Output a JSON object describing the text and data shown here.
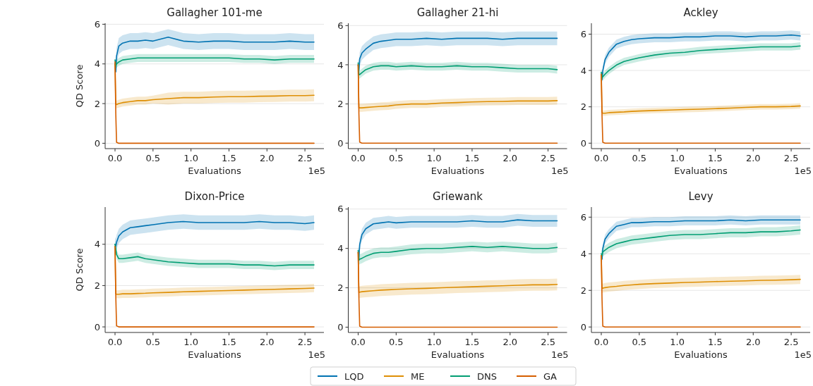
{
  "chart_data": [
    {
      "type": "line",
      "title": "Gallagher 101-me",
      "xlabel": "Evaluations",
      "ylabel": "QD Score",
      "annotations": [
        "1e5"
      ],
      "grid": "y",
      "xlim": [
        -0.13,
        2.75
      ],
      "ylim": [
        -0.27,
        6.05
      ],
      "xticks": [
        {
          "value": 0,
          "label": "0.0"
        },
        0.5,
        {
          "value": 1,
          "label": "1.0"
        },
        1.5,
        {
          "value": 2,
          "label": "2.0"
        },
        2.5
      ],
      "yticks": [
        0,
        2,
        4,
        6
      ],
      "x": [
        0,
        0.01,
        0.02,
        0.05,
        0.1,
        0.2,
        0.3,
        0.4,
        0.5,
        0.7,
        0.9,
        1.1,
        1.3,
        1.5,
        1.7,
        1.9,
        2.1,
        2.3,
        2.5,
        2.62
      ],
      "series": [
        {
          "color": "#0173b2",
          "values": [
            4.0,
            3.6,
            4.4,
            4.9,
            5.05,
            5.15,
            5.15,
            5.2,
            5.15,
            5.35,
            5.15,
            5.1,
            5.15,
            5.15,
            5.1,
            5.1,
            5.1,
            5.15,
            5.1,
            5.1
          ],
          "lower": [
            3.8,
            3.4,
            4.0,
            4.5,
            4.65,
            4.75,
            4.75,
            4.8,
            4.75,
            4.95,
            4.75,
            4.7,
            4.75,
            4.75,
            4.7,
            4.7,
            4.7,
            4.75,
            4.7,
            4.7
          ],
          "upper": [
            4.2,
            3.8,
            4.8,
            5.3,
            5.45,
            5.55,
            5.55,
            5.6,
            5.55,
            5.75,
            5.55,
            5.5,
            5.55,
            5.55,
            5.5,
            5.5,
            5.5,
            5.55,
            5.5,
            5.5
          ]
        },
        {
          "color": "#de8f05",
          "values": [
            4.0,
            2.0,
            1.95,
            2.0,
            2.05,
            2.1,
            2.15,
            2.15,
            2.2,
            2.25,
            2.3,
            2.3,
            2.33,
            2.35,
            2.35,
            2.37,
            2.38,
            2.4,
            2.4,
            2.42
          ],
          "lower": [
            3.8,
            1.8,
            1.75,
            1.8,
            1.85,
            1.9,
            1.95,
            1.95,
            2.0,
            1.95,
            2.0,
            2.0,
            2.03,
            2.05,
            2.05,
            2.07,
            2.08,
            2.1,
            2.1,
            2.12
          ],
          "upper": [
            4.2,
            2.2,
            2.15,
            2.2,
            2.25,
            2.3,
            2.35,
            2.35,
            2.4,
            2.55,
            2.6,
            2.6,
            2.63,
            2.65,
            2.65,
            2.67,
            2.68,
            2.7,
            2.7,
            2.72
          ]
        },
        {
          "color": "#029e73",
          "values": [
            4.2,
            3.9,
            4.0,
            4.1,
            4.2,
            4.25,
            4.3,
            4.3,
            4.3,
            4.3,
            4.3,
            4.3,
            4.3,
            4.3,
            4.25,
            4.25,
            4.2,
            4.25,
            4.25,
            4.25
          ],
          "lower": [
            4.0,
            3.7,
            3.8,
            3.9,
            4.0,
            4.05,
            4.1,
            4.1,
            4.1,
            4.1,
            4.1,
            4.1,
            4.1,
            4.1,
            4.05,
            4.05,
            4.0,
            4.05,
            4.05,
            4.05
          ],
          "upper": [
            4.4,
            4.1,
            4.2,
            4.3,
            4.4,
            4.45,
            4.5,
            4.5,
            4.5,
            4.5,
            4.5,
            4.5,
            4.5,
            4.5,
            4.45,
            4.45,
            4.4,
            4.45,
            4.45,
            4.45
          ]
        },
        {
          "color": "#d55e00",
          "values": [
            4.1,
            1.5,
            0.05,
            0,
            0,
            0,
            0,
            0,
            0,
            0,
            0,
            0,
            0,
            0,
            0,
            0,
            0,
            0,
            0,
            0
          ]
        }
      ]
    },
    {
      "type": "line",
      "title": "Gallagher 21-hi",
      "xlabel": "Evaluations",
      "annotations": [
        "1e5"
      ],
      "grid": "y",
      "xlim": [
        -0.13,
        2.75
      ],
      "ylim": [
        -0.28,
        6.12
      ],
      "xticks": [
        {
          "value": 0,
          "label": "0.0"
        },
        0.5,
        {
          "value": 1,
          "label": "1.0"
        },
        1.5,
        {
          "value": 2,
          "label": "2.0"
        },
        2.5
      ],
      "yticks": [
        0,
        2,
        4,
        6
      ],
      "x": [
        0,
        0.01,
        0.02,
        0.05,
        0.1,
        0.2,
        0.3,
        0.4,
        0.5,
        0.7,
        0.9,
        1.1,
        1.3,
        1.5,
        1.7,
        1.9,
        2.1,
        2.3,
        2.5,
        2.62
      ],
      "series": [
        {
          "color": "#0173b2",
          "values": [
            4.0,
            3.7,
            4.3,
            4.6,
            4.8,
            5.1,
            5.2,
            5.25,
            5.3,
            5.3,
            5.35,
            5.3,
            5.35,
            5.35,
            5.35,
            5.3,
            5.35,
            5.35,
            5.35,
            5.35
          ],
          "lower": [
            3.65,
            3.35,
            3.95,
            4.25,
            4.45,
            4.75,
            4.85,
            4.9,
            4.95,
            4.95,
            5.0,
            4.95,
            5.0,
            5.0,
            5.0,
            4.95,
            5.0,
            5.0,
            5.0,
            5.0
          ],
          "upper": [
            4.35,
            4.05,
            4.65,
            4.95,
            5.15,
            5.45,
            5.55,
            5.6,
            5.65,
            5.65,
            5.7,
            5.65,
            5.7,
            5.7,
            5.7,
            5.65,
            5.7,
            5.7,
            5.7,
            5.7
          ]
        },
        {
          "color": "#de8f05",
          "values": [
            4.0,
            1.8,
            1.8,
            1.8,
            1.82,
            1.85,
            1.88,
            1.9,
            1.95,
            2.0,
            2.0,
            2.05,
            2.07,
            2.1,
            2.12,
            2.13,
            2.15,
            2.15,
            2.15,
            2.17
          ],
          "lower": [
            3.8,
            1.6,
            1.6,
            1.6,
            1.62,
            1.65,
            1.68,
            1.7,
            1.75,
            1.8,
            1.8,
            1.85,
            1.87,
            1.9,
            1.92,
            1.93,
            1.95,
            1.95,
            1.95,
            1.97
          ],
          "upper": [
            4.2,
            2.0,
            2.0,
            2.0,
            2.02,
            2.05,
            2.08,
            2.1,
            2.15,
            2.2,
            2.2,
            2.25,
            2.27,
            2.3,
            2.32,
            2.33,
            2.35,
            2.35,
            2.35,
            2.37
          ]
        },
        {
          "color": "#029e73",
          "values": [
            4.1,
            3.5,
            3.5,
            3.6,
            3.75,
            3.9,
            3.95,
            3.95,
            3.9,
            3.95,
            3.9,
            3.9,
            3.95,
            3.9,
            3.9,
            3.85,
            3.8,
            3.8,
            3.8,
            3.75
          ],
          "lower": [
            3.9,
            3.3,
            3.3,
            3.4,
            3.55,
            3.7,
            3.75,
            3.75,
            3.7,
            3.75,
            3.7,
            3.7,
            3.75,
            3.7,
            3.7,
            3.65,
            3.6,
            3.6,
            3.6,
            3.55
          ],
          "upper": [
            4.3,
            3.7,
            3.7,
            3.8,
            3.95,
            4.1,
            4.15,
            4.15,
            4.1,
            4.15,
            4.1,
            4.1,
            4.15,
            4.1,
            4.1,
            4.05,
            4.0,
            4.0,
            4.0,
            3.95
          ]
        },
        {
          "color": "#d55e00",
          "values": [
            4.0,
            1.5,
            0.05,
            0,
            0,
            0,
            0,
            0,
            0,
            0,
            0,
            0,
            0,
            0,
            0,
            0,
            0,
            0,
            0,
            0
          ]
        }
      ]
    },
    {
      "type": "line",
      "title": "Ackley",
      "xlabel": "Evaluations",
      "annotations": [
        "1e5"
      ],
      "grid": "y",
      "xlim": [
        -0.13,
        2.75
      ],
      "ylim": [
        -0.3,
        6.6
      ],
      "xticks": [
        {
          "value": 0,
          "label": "0.0"
        },
        0.5,
        {
          "value": 1,
          "label": "1.0"
        },
        1.5,
        {
          "value": 2,
          "label": "2.0"
        },
        2.5
      ],
      "yticks": [
        0,
        2,
        4,
        6
      ],
      "x": [
        0,
        0.01,
        0.02,
        0.05,
        0.1,
        0.2,
        0.3,
        0.4,
        0.5,
        0.7,
        0.9,
        1.1,
        1.3,
        1.5,
        1.7,
        1.9,
        2.1,
        2.3,
        2.5,
        2.62
      ],
      "series": [
        {
          "color": "#0173b2",
          "values": [
            3.8,
            3.5,
            4.0,
            4.6,
            5.0,
            5.45,
            5.6,
            5.7,
            5.75,
            5.8,
            5.8,
            5.85,
            5.85,
            5.9,
            5.9,
            5.85,
            5.9,
            5.9,
            5.95,
            5.9
          ],
          "lower": [
            3.55,
            3.25,
            3.75,
            4.35,
            4.75,
            5.2,
            5.35,
            5.45,
            5.5,
            5.55,
            5.55,
            5.6,
            5.6,
            5.65,
            5.65,
            5.6,
            5.65,
            5.65,
            5.7,
            5.65
          ],
          "upper": [
            4.05,
            3.75,
            4.25,
            4.85,
            5.25,
            5.7,
            5.85,
            5.95,
            6.0,
            6.05,
            6.05,
            6.1,
            6.1,
            6.15,
            6.15,
            6.1,
            6.15,
            6.15,
            6.2,
            6.15
          ]
        },
        {
          "color": "#de8f05",
          "values": [
            3.8,
            1.7,
            1.65,
            1.65,
            1.68,
            1.7,
            1.72,
            1.75,
            1.77,
            1.8,
            1.82,
            1.85,
            1.87,
            1.9,
            1.93,
            1.97,
            2.0,
            2.0,
            2.02,
            2.05
          ],
          "lower": [
            3.65,
            1.55,
            1.5,
            1.5,
            1.53,
            1.55,
            1.57,
            1.6,
            1.62,
            1.65,
            1.67,
            1.7,
            1.72,
            1.75,
            1.78,
            1.82,
            1.85,
            1.85,
            1.87,
            1.9
          ],
          "upper": [
            3.95,
            1.85,
            1.8,
            1.8,
            1.83,
            1.85,
            1.87,
            1.9,
            1.92,
            1.95,
            1.97,
            2.0,
            2.02,
            2.05,
            2.08,
            2.12,
            2.15,
            2.15,
            2.17,
            2.2
          ]
        },
        {
          "color": "#029e73",
          "values": [
            3.9,
            3.6,
            3.65,
            3.8,
            4.0,
            4.3,
            4.5,
            4.6,
            4.7,
            4.85,
            4.95,
            5.0,
            5.1,
            5.15,
            5.2,
            5.25,
            5.3,
            5.3,
            5.3,
            5.35
          ],
          "lower": [
            3.7,
            3.4,
            3.45,
            3.6,
            3.8,
            4.1,
            4.3,
            4.4,
            4.5,
            4.65,
            4.75,
            4.8,
            4.9,
            4.95,
            5.0,
            5.05,
            5.1,
            5.1,
            5.1,
            5.15
          ],
          "upper": [
            4.1,
            3.8,
            3.85,
            4.0,
            4.2,
            4.5,
            4.7,
            4.8,
            4.9,
            5.05,
            5.15,
            5.2,
            5.3,
            5.35,
            5.4,
            5.45,
            5.5,
            5.5,
            5.5,
            5.55
          ]
        },
        {
          "color": "#d55e00",
          "values": [
            3.8,
            1.5,
            0.05,
            0,
            0,
            0,
            0,
            0,
            0,
            0,
            0,
            0,
            0,
            0,
            0,
            0,
            0,
            0,
            0,
            0
          ]
        }
      ]
    },
    {
      "type": "line",
      "title": "Dixon-Price",
      "xlabel": "Evaluations",
      "ylabel": "QD Score",
      "annotations": [
        "1e5"
      ],
      "grid": "y",
      "xlim": [
        -0.13,
        2.75
      ],
      "ylim": [
        -0.27,
        5.8
      ],
      "xticks": [
        {
          "value": 0,
          "label": "0.0"
        },
        0.5,
        {
          "value": 1,
          "label": "1.0"
        },
        1.5,
        {
          "value": 2,
          "label": "2.0"
        },
        2.5
      ],
      "yticks": [
        0,
        2,
        4
      ],
      "x": [
        0,
        0.01,
        0.02,
        0.05,
        0.1,
        0.2,
        0.3,
        0.4,
        0.5,
        0.7,
        0.9,
        1.1,
        1.3,
        1.5,
        1.7,
        1.9,
        2.1,
        2.3,
        2.5,
        2.62
      ],
      "series": [
        {
          "color": "#0173b2",
          "values": [
            4.0,
            3.9,
            4.1,
            4.4,
            4.6,
            4.8,
            4.85,
            4.9,
            4.95,
            5.05,
            5.1,
            5.05,
            5.05,
            5.05,
            5.05,
            5.1,
            5.05,
            5.05,
            5.0,
            5.05
          ],
          "lower": [
            3.65,
            3.55,
            3.75,
            4.05,
            4.25,
            4.45,
            4.5,
            4.55,
            4.6,
            4.7,
            4.75,
            4.7,
            4.7,
            4.7,
            4.7,
            4.75,
            4.7,
            4.7,
            4.65,
            4.7
          ],
          "upper": [
            4.35,
            4.25,
            4.45,
            4.75,
            4.95,
            5.15,
            5.2,
            5.25,
            5.3,
            5.4,
            5.45,
            5.4,
            5.4,
            5.4,
            5.4,
            5.45,
            5.4,
            5.4,
            5.35,
            5.4
          ]
        },
        {
          "color": "#de8f05",
          "values": [
            3.9,
            1.6,
            1.58,
            1.58,
            1.6,
            1.6,
            1.62,
            1.63,
            1.65,
            1.67,
            1.7,
            1.72,
            1.74,
            1.76,
            1.78,
            1.8,
            1.82,
            1.84,
            1.86,
            1.88
          ],
          "lower": [
            3.7,
            1.4,
            1.38,
            1.38,
            1.4,
            1.4,
            1.42,
            1.43,
            1.45,
            1.47,
            1.5,
            1.52,
            1.54,
            1.56,
            1.58,
            1.6,
            1.62,
            1.64,
            1.66,
            1.68
          ],
          "upper": [
            4.1,
            1.8,
            1.78,
            1.78,
            1.8,
            1.8,
            1.82,
            1.83,
            1.85,
            1.87,
            1.9,
            1.92,
            1.94,
            1.96,
            1.98,
            2.0,
            2.02,
            2.04,
            2.06,
            2.08
          ]
        },
        {
          "color": "#029e73",
          "values": [
            4.0,
            3.8,
            3.5,
            3.3,
            3.3,
            3.35,
            3.4,
            3.3,
            3.25,
            3.15,
            3.1,
            3.05,
            3.05,
            3.05,
            3.0,
            3.0,
            2.95,
            3.0,
            3.0,
            3.0
          ],
          "lower": [
            3.8,
            3.6,
            3.3,
            3.1,
            3.1,
            3.15,
            3.2,
            3.1,
            3.05,
            2.95,
            2.9,
            2.85,
            2.85,
            2.85,
            2.8,
            2.8,
            2.75,
            2.8,
            2.8,
            2.8
          ],
          "upper": [
            4.2,
            4.0,
            3.7,
            3.5,
            3.5,
            3.55,
            3.6,
            3.5,
            3.45,
            3.35,
            3.3,
            3.25,
            3.25,
            3.25,
            3.2,
            3.2,
            3.15,
            3.2,
            3.2,
            3.2
          ]
        },
        {
          "color": "#d55e00",
          "values": [
            3.9,
            1.5,
            0.05,
            0,
            0,
            0,
            0,
            0,
            0,
            0,
            0,
            0,
            0,
            0,
            0,
            0,
            0,
            0,
            0,
            0
          ]
        }
      ]
    },
    {
      "type": "line",
      "title": "Griewank",
      "xlabel": "Evaluations",
      "annotations": [
        "1e5"
      ],
      "grid": "y",
      "legend": "bottom",
      "xlim": [
        -0.13,
        2.75
      ],
      "ylim": [
        -0.27,
        6.1
      ],
      "xticks": [
        {
          "value": 0,
          "label": "0.0"
        },
        0.5,
        {
          "value": 1,
          "label": "1.0"
        },
        1.5,
        {
          "value": 2,
          "label": "2.0"
        },
        2.5
      ],
      "yticks": [
        0,
        2,
        4,
        6
      ],
      "x": [
        0,
        0.01,
        0.02,
        0.05,
        0.1,
        0.2,
        0.3,
        0.4,
        0.5,
        0.7,
        0.9,
        1.1,
        1.3,
        1.5,
        1.7,
        1.9,
        2.1,
        2.3,
        2.5,
        2.62
      ],
      "series": [
        {
          "name": "LQD",
          "color": "#0173b2",
          "values": [
            3.8,
            3.5,
            4.2,
            4.7,
            5.0,
            5.25,
            5.3,
            5.35,
            5.3,
            5.35,
            5.35,
            5.35,
            5.35,
            5.4,
            5.35,
            5.35,
            5.45,
            5.4,
            5.4,
            5.4
          ],
          "lower": [
            3.5,
            3.2,
            3.9,
            4.4,
            4.7,
            4.95,
            5.0,
            5.05,
            5.0,
            5.05,
            5.05,
            5.05,
            5.05,
            5.1,
            5.05,
            5.05,
            5.15,
            5.1,
            5.1,
            5.1
          ],
          "upper": [
            4.1,
            3.8,
            4.5,
            5.0,
            5.3,
            5.55,
            5.6,
            5.65,
            5.6,
            5.65,
            5.65,
            5.65,
            5.65,
            5.7,
            5.65,
            5.65,
            5.75,
            5.7,
            5.7,
            5.7
          ]
        },
        {
          "name": "ME",
          "color": "#de8f05",
          "values": [
            3.8,
            1.75,
            1.78,
            1.8,
            1.82,
            1.85,
            1.88,
            1.9,
            1.92,
            1.95,
            1.97,
            2.0,
            2.03,
            2.05,
            2.08,
            2.1,
            2.13,
            2.15,
            2.15,
            2.17
          ],
          "lower": [
            3.5,
            1.45,
            1.48,
            1.5,
            1.52,
            1.55,
            1.58,
            1.6,
            1.62,
            1.65,
            1.67,
            1.7,
            1.73,
            1.75,
            1.78,
            1.8,
            1.83,
            1.85,
            1.85,
            1.87
          ],
          "upper": [
            4.1,
            2.05,
            2.08,
            2.1,
            2.12,
            2.15,
            2.18,
            2.2,
            2.22,
            2.25,
            2.27,
            2.3,
            2.33,
            2.35,
            2.38,
            2.4,
            2.43,
            2.45,
            2.45,
            2.47
          ]
        },
        {
          "name": "DNS",
          "color": "#029e73",
          "values": [
            3.9,
            3.4,
            3.45,
            3.5,
            3.6,
            3.75,
            3.8,
            3.8,
            3.85,
            3.95,
            4.0,
            4.0,
            4.05,
            4.1,
            4.05,
            4.1,
            4.05,
            4.0,
            4.0,
            4.05
          ],
          "lower": [
            3.65,
            3.15,
            3.2,
            3.25,
            3.35,
            3.5,
            3.55,
            3.55,
            3.6,
            3.7,
            3.75,
            3.75,
            3.8,
            3.85,
            3.8,
            3.85,
            3.8,
            3.75,
            3.75,
            3.8
          ],
          "upper": [
            4.15,
            3.65,
            3.7,
            3.75,
            3.85,
            4.0,
            4.05,
            4.05,
            4.1,
            4.2,
            4.25,
            4.25,
            4.3,
            4.35,
            4.3,
            4.35,
            4.3,
            4.25,
            4.25,
            4.3
          ]
        },
        {
          "name": "GA",
          "color": "#d55e00",
          "values": [
            3.8,
            1.5,
            0.05,
            0,
            0,
            0,
            0,
            0,
            0,
            0,
            0,
            0,
            0,
            0,
            0,
            0,
            0,
            0,
            0,
            0
          ]
        }
      ]
    },
    {
      "type": "line",
      "title": "Levy",
      "xlabel": "Evaluations",
      "annotations": [
        "1e5"
      ],
      "grid": "y",
      "xlim": [
        -0.13,
        2.75
      ],
      "ylim": [
        -0.3,
        6.55
      ],
      "xticks": [
        {
          "value": 0,
          "label": "0.0"
        },
        0.5,
        {
          "value": 1,
          "label": "1.0"
        },
        1.5,
        {
          "value": 2,
          "label": "2.0"
        },
        2.5
      ],
      "yticks": [
        0,
        2,
        4,
        6
      ],
      "x": [
        0,
        0.01,
        0.02,
        0.05,
        0.1,
        0.2,
        0.3,
        0.4,
        0.5,
        0.7,
        0.9,
        1.1,
        1.3,
        1.5,
        1.7,
        1.9,
        2.1,
        2.3,
        2.5,
        2.62
      ],
      "series": [
        {
          "color": "#0173b2",
          "values": [
            3.9,
            3.7,
            4.3,
            4.8,
            5.1,
            5.5,
            5.6,
            5.7,
            5.7,
            5.75,
            5.75,
            5.8,
            5.8,
            5.8,
            5.85,
            5.8,
            5.85,
            5.85,
            5.85,
            5.85
          ],
          "lower": [
            3.65,
            3.45,
            4.05,
            4.55,
            4.85,
            5.25,
            5.35,
            5.45,
            5.45,
            5.5,
            5.5,
            5.55,
            5.55,
            5.55,
            5.6,
            5.55,
            5.6,
            5.6,
            5.6,
            5.6
          ],
          "upper": [
            4.15,
            3.95,
            4.55,
            5.05,
            5.35,
            5.75,
            5.85,
            5.95,
            5.95,
            6.0,
            6.0,
            6.05,
            6.05,
            6.05,
            6.1,
            6.05,
            6.1,
            6.1,
            6.1,
            6.1
          ]
        },
        {
          "color": "#de8f05",
          "values": [
            3.9,
            2.1,
            2.12,
            2.15,
            2.18,
            2.22,
            2.27,
            2.3,
            2.33,
            2.37,
            2.4,
            2.43,
            2.45,
            2.48,
            2.5,
            2.52,
            2.55,
            2.56,
            2.58,
            2.6
          ],
          "lower": [
            3.65,
            1.85,
            1.87,
            1.9,
            1.93,
            1.97,
            2.02,
            2.05,
            2.08,
            2.12,
            2.15,
            2.18,
            2.2,
            2.23,
            2.25,
            2.27,
            2.3,
            2.31,
            2.33,
            2.35
          ],
          "upper": [
            4.15,
            2.35,
            2.37,
            2.4,
            2.43,
            2.47,
            2.52,
            2.55,
            2.58,
            2.62,
            2.65,
            2.68,
            2.7,
            2.73,
            2.75,
            2.77,
            2.8,
            2.81,
            2.83,
            2.85
          ]
        },
        {
          "color": "#029e73",
          "values": [
            4.0,
            3.9,
            4.1,
            4.2,
            4.35,
            4.55,
            4.65,
            4.75,
            4.8,
            4.9,
            5.0,
            5.05,
            5.05,
            5.1,
            5.15,
            5.15,
            5.2,
            5.2,
            5.25,
            5.3
          ],
          "lower": [
            3.75,
            3.65,
            3.85,
            3.95,
            4.1,
            4.3,
            4.4,
            4.5,
            4.55,
            4.65,
            4.75,
            4.8,
            4.8,
            4.85,
            4.9,
            4.9,
            4.95,
            4.95,
            5.0,
            5.05
          ],
          "upper": [
            4.25,
            4.15,
            4.35,
            4.45,
            4.6,
            4.8,
            4.9,
            5.0,
            5.05,
            5.15,
            5.25,
            5.3,
            5.3,
            5.35,
            5.4,
            5.4,
            5.45,
            5.45,
            5.5,
            5.55
          ]
        },
        {
          "color": "#d55e00",
          "values": [
            3.9,
            1.5,
            0.05,
            0,
            0,
            0,
            0,
            0,
            0,
            0,
            0,
            0,
            0,
            0,
            0,
            0,
            0,
            0,
            0,
            0
          ]
        }
      ]
    }
  ]
}
